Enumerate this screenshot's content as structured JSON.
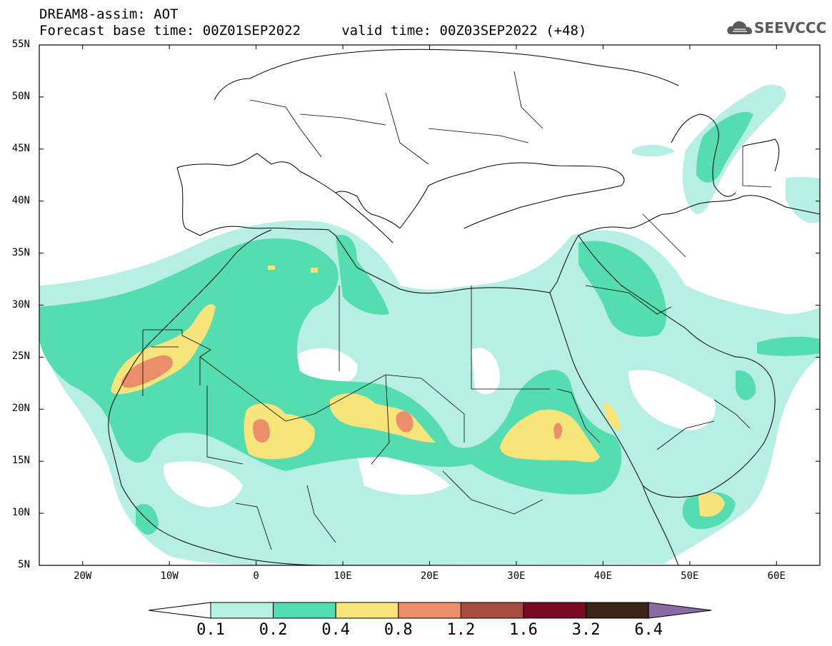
{
  "header": {
    "title_line1": "DREAM8-assim: AOT",
    "title_line2": "Forecast base time: 00Z01SEP2022     valid time: 00Z03SEP2022 (+48)"
  },
  "logo": {
    "text": "SEEVCCC",
    "icon": "cloud-icon"
  },
  "map": {
    "lon_range": [
      -25,
      65
    ],
    "lat_range": [
      5,
      55
    ],
    "lat_labels": [
      "5N",
      "10N",
      "15N",
      "20N",
      "25N",
      "30N",
      "35N",
      "40N",
      "45N",
      "50N",
      "55N"
    ],
    "lon_labels": [
      "20W",
      "10W",
      "0",
      "10E",
      "20E",
      "30E",
      "40E",
      "50E",
      "60E"
    ],
    "variable": "AOT"
  },
  "colorbar": {
    "labels": [
      "0.1",
      "0.2",
      "0.4",
      "0.8",
      "1.2",
      "1.6",
      "3.2",
      "6.4"
    ],
    "colors": [
      "#ffffff",
      "#b7efe4",
      "#55dcb0",
      "#f7e47a",
      "#eb8f6a",
      "#a44a3e",
      "#7a0a24",
      "#3a2418",
      "#8a6aa2"
    ]
  }
}
